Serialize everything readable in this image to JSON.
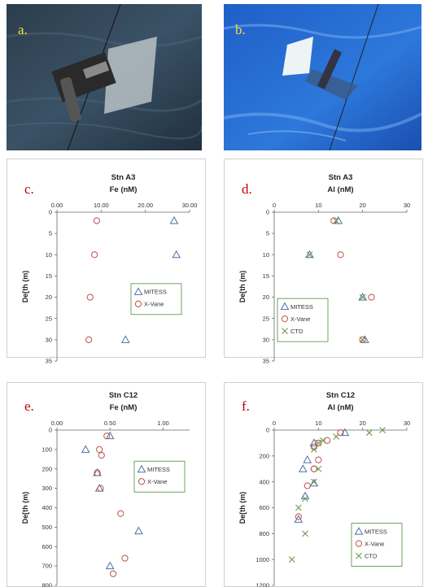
{
  "figure": {
    "panel_letters": {
      "a": "a.",
      "b": "b.",
      "c": "c.",
      "d": "d.",
      "e": "e.",
      "f": "f."
    }
  },
  "colors": {
    "mitess": "#4f6fa8",
    "xvane": "#c0504d",
    "ctd": "#6a9a4a",
    "letter_photo": "#f2e23a",
    "letter_chart": "#c00000",
    "legend_border": "#4e8a3a"
  },
  "chart_data": [
    {
      "id": "c",
      "type": "scatter",
      "title": "Stn A3",
      "xlabel": "Fe (nM)",
      "ylabel": "De[th (m)",
      "xlim": [
        0,
        30
      ],
      "ylim": [
        35,
        0
      ],
      "xticks": [
        "0.00",
        "10.00",
        "20.00",
        "30.00"
      ],
      "xtick_values": [
        0,
        10,
        20,
        30
      ],
      "yticks": [
        "0",
        "5",
        "10",
        "15",
        "20",
        "25",
        "30",
        "35"
      ],
      "ytick_values": [
        0,
        5,
        10,
        15,
        20,
        25,
        30,
        35
      ],
      "grid": false,
      "legend_position": "right-middle",
      "series": [
        {
          "name": "MITESS",
          "marker": "triangle",
          "x": [
            26.5,
            27.0,
            15.5
          ],
          "y": [
            2,
            10,
            30
          ]
        },
        {
          "name": "X-Vane",
          "marker": "circle",
          "x": [
            9.0,
            8.5,
            7.5,
            7.2
          ],
          "y": [
            2,
            10,
            20,
            30
          ]
        }
      ]
    },
    {
      "id": "d",
      "type": "scatter",
      "title": "Stn A3",
      "xlabel": "Al (nM)",
      "ylabel": "De[th (m)",
      "xlim": [
        0,
        30
      ],
      "ylim": [
        35,
        0
      ],
      "xticks": [
        "0",
        "10",
        "20",
        "30"
      ],
      "xtick_values": [
        0,
        10,
        20,
        30
      ],
      "yticks": [
        "0",
        "5",
        "10",
        "15",
        "20",
        "25",
        "30",
        "35"
      ],
      "ytick_values": [
        0,
        5,
        10,
        15,
        20,
        25,
        30,
        35
      ],
      "grid": false,
      "legend_position": "left-bottom",
      "series": [
        {
          "name": "MITESS",
          "marker": "triangle",
          "x": [
            14.5,
            8.0,
            20.0,
            20.5
          ],
          "y": [
            2,
            10,
            20,
            30
          ]
        },
        {
          "name": "X-Vane",
          "marker": "circle",
          "x": [
            13.5,
            15.0,
            22.0,
            20.0
          ],
          "y": [
            2,
            10,
            20,
            30
          ]
        },
        {
          "name": "CTD",
          "marker": "x",
          "x": [
            14.0,
            8.0,
            20.0,
            20.0
          ],
          "y": [
            2,
            10,
            20,
            30
          ]
        }
      ]
    },
    {
      "id": "e",
      "type": "scatter",
      "title": "Stn C12",
      "xlabel": "Fe (nM)",
      "ylabel": "De[th (m)",
      "xlim": [
        0,
        1.25
      ],
      "ylim": [
        800,
        0
      ],
      "xticks": [
        "0.00",
        "0.50",
        "1.00"
      ],
      "xtick_values": [
        0,
        0.5,
        1.0
      ],
      "yticks": [
        "0",
        "100",
        "200",
        "300",
        "400",
        "500",
        "600",
        "700",
        "800"
      ],
      "ytick_values": [
        0,
        100,
        200,
        300,
        400,
        500,
        600,
        700,
        800
      ],
      "grid": false,
      "legend_position": "right-top",
      "series": [
        {
          "name": "MITESS",
          "marker": "triangle",
          "x": [
            0.5,
            0.27,
            0.38,
            0.4,
            0.77,
            0.5
          ],
          "y": [
            30,
            100,
            220,
            300,
            520,
            700
          ]
        },
        {
          "name": "X-Vane",
          "marker": "circle",
          "x": [
            0.47,
            0.4,
            0.42,
            0.38,
            0.41,
            0.6,
            0.64,
            0.53
          ],
          "y": [
            30,
            100,
            130,
            220,
            300,
            430,
            660,
            740
          ]
        }
      ]
    },
    {
      "id": "f",
      "type": "scatter",
      "title": "Stn C12",
      "xlabel": "Al (nM)",
      "ylabel": "De[th (m)",
      "xlim": [
        0,
        30
      ],
      "ylim": [
        1200,
        0
      ],
      "xticks": [
        "0",
        "10",
        "20",
        "30"
      ],
      "xtick_values": [
        0,
        10,
        20,
        30
      ],
      "yticks": [
        "0",
        "200",
        "400",
        "600",
        "800",
        "1000",
        "1200"
      ],
      "ytick_values": [
        0,
        200,
        400,
        600,
        800,
        1000,
        1200
      ],
      "grid": false,
      "legend_position": "right-bottom",
      "series": [
        {
          "name": "MITESS",
          "marker": "triangle",
          "x": [
            16.0,
            9.0,
            7.5,
            6.5,
            9.0,
            7.0,
            5.5
          ],
          "y": [
            20,
            100,
            230,
            300,
            410,
            510,
            690
          ]
        },
        {
          "name": "X-Vane",
          "marker": "circle",
          "x": [
            15.0,
            12.0,
            10.0,
            9.0,
            9.0,
            10.0,
            9.0,
            7.5,
            5.5
          ],
          "y": [
            20,
            80,
            100,
            130,
            300,
            230,
            300,
            430,
            670
          ]
        },
        {
          "name": "CTD",
          "marker": "x",
          "x": [
            24.5,
            21.5,
            14.0,
            11.0,
            10.0,
            9.0,
            10.0,
            9.0,
            7.0,
            5.5,
            7.0,
            4.0
          ],
          "y": [
            0,
            20,
            50,
            80,
            100,
            150,
            300,
            400,
            530,
            600,
            800,
            1000
          ]
        }
      ]
    }
  ]
}
